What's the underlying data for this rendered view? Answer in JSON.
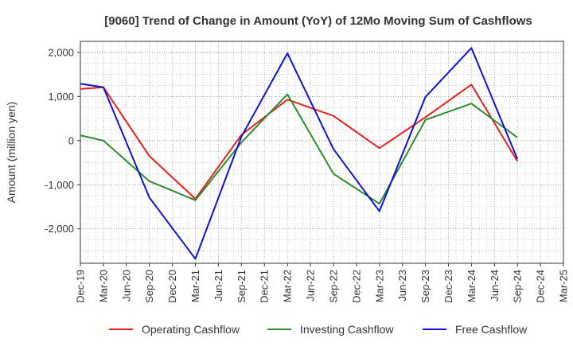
{
  "chart_data": {
    "type": "line",
    "title": "[9060]  Trend of Change in Amount (YoY) of 12Mo Moving Sum of Cashflows",
    "xlabel": "",
    "ylabel": "Amount (million yen)",
    "categories": [
      "Dec-19",
      "Mar-20",
      "Jun-20",
      "Sep-20",
      "Dec-20",
      "Mar-21",
      "Jun-21",
      "Sep-21",
      "Dec-21",
      "Mar-22",
      "Jun-22",
      "Sep-22",
      "Dec-22",
      "Mar-23",
      "Jun-23",
      "Sep-23",
      "Dec-23",
      "Mar-24",
      "Jun-24",
      "Sep-24",
      "Dec-24",
      "Mar-25"
    ],
    "yticks": [
      2000,
      1000,
      0,
      -1000,
      -2000
    ],
    "ytick_labels": [
      "2,000",
      "1,000",
      "0",
      "-1,000",
      "-2,000"
    ],
    "ylim": [
      -2780,
      2250
    ],
    "grid": true,
    "legend_position": "bottom",
    "series": [
      {
        "name": "Operating Cashflow",
        "color": "#e8201c",
        "points": [
          [
            0,
            1170
          ],
          [
            1,
            1210
          ],
          [
            3,
            -350
          ],
          [
            5,
            -1320
          ],
          [
            7,
            130
          ],
          [
            9,
            930
          ],
          [
            11,
            560
          ],
          [
            13,
            -170
          ],
          [
            15,
            530
          ],
          [
            17,
            1270
          ],
          [
            19,
            -470
          ]
        ]
      },
      {
        "name": "Investing Cashflow",
        "color": "#2e8b2e",
        "points": [
          [
            0,
            120
          ],
          [
            1,
            0
          ],
          [
            3,
            -920
          ],
          [
            5,
            -1350
          ],
          [
            7,
            -40
          ],
          [
            9,
            1050
          ],
          [
            11,
            -750
          ],
          [
            13,
            -1430
          ],
          [
            15,
            470
          ],
          [
            17,
            840
          ],
          [
            19,
            70
          ]
        ]
      },
      {
        "name": "Free Cashflow",
        "color": "#1010d8",
        "points": [
          [
            0,
            1290
          ],
          [
            1,
            1210
          ],
          [
            3,
            -1290
          ],
          [
            5,
            -2680
          ],
          [
            7,
            90
          ],
          [
            9,
            1980
          ],
          [
            11,
            -190
          ],
          [
            13,
            -1600
          ],
          [
            15,
            990
          ],
          [
            17,
            2100
          ],
          [
            19,
            -420
          ]
        ]
      }
    ]
  }
}
